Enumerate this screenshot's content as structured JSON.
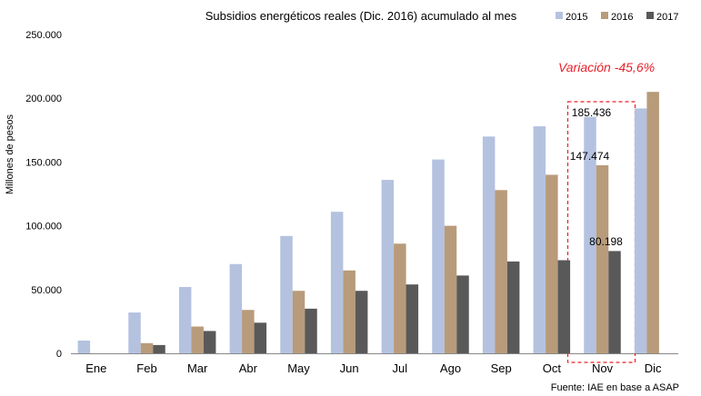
{
  "chart_data": {
    "type": "bar",
    "title": "Subsidios energéticos reales (Dic. 2016) acumulado al mes",
    "ylabel": "Millones de pesos",
    "xlabel": "",
    "ylim": [
      0,
      250000
    ],
    "yticks": [
      0,
      50000,
      100000,
      150000,
      200000,
      250000
    ],
    "ytick_labels": [
      "0",
      "50.000",
      "100.000",
      "150.000",
      "200.000",
      "250.000"
    ],
    "categories": [
      "Ene",
      "Feb",
      "Mar",
      "Abr",
      "May",
      "Jun",
      "Jul",
      "Ago",
      "Sep",
      "Oct",
      "Nov",
      "Dic"
    ],
    "legend_position": "top-right",
    "grid": false,
    "series": [
      {
        "name": "2015",
        "color": "#b4c2e0",
        "values": [
          10000,
          32000,
          52000,
          70000,
          92000,
          111000,
          136000,
          152000,
          170000,
          178000,
          185436,
          192000
        ]
      },
      {
        "name": "2016",
        "color": "#b89b7a",
        "values": [
          0,
          8000,
          21000,
          34000,
          49000,
          65000,
          86000,
          100000,
          128000,
          140000,
          147474,
          205000
        ]
      },
      {
        "name": "2017",
        "color": "#595959",
        "values": [
          0,
          6500,
          17500,
          24000,
          35000,
          49000,
          54000,
          61000,
          72000,
          73000,
          80198,
          null
        ]
      }
    ],
    "data_labels": [
      {
        "series": "2015",
        "category": "Nov",
        "text": "185.436"
      },
      {
        "series": "2016",
        "category": "Nov",
        "text": "147.474"
      },
      {
        "series": "2017",
        "category": "Nov",
        "text": "80.198"
      }
    ],
    "annotation": {
      "text": "Variación -45,6%",
      "color": "#e8212b",
      "highlight_category": "Nov"
    },
    "source": "Fuente: IAE en base a ASAP"
  }
}
